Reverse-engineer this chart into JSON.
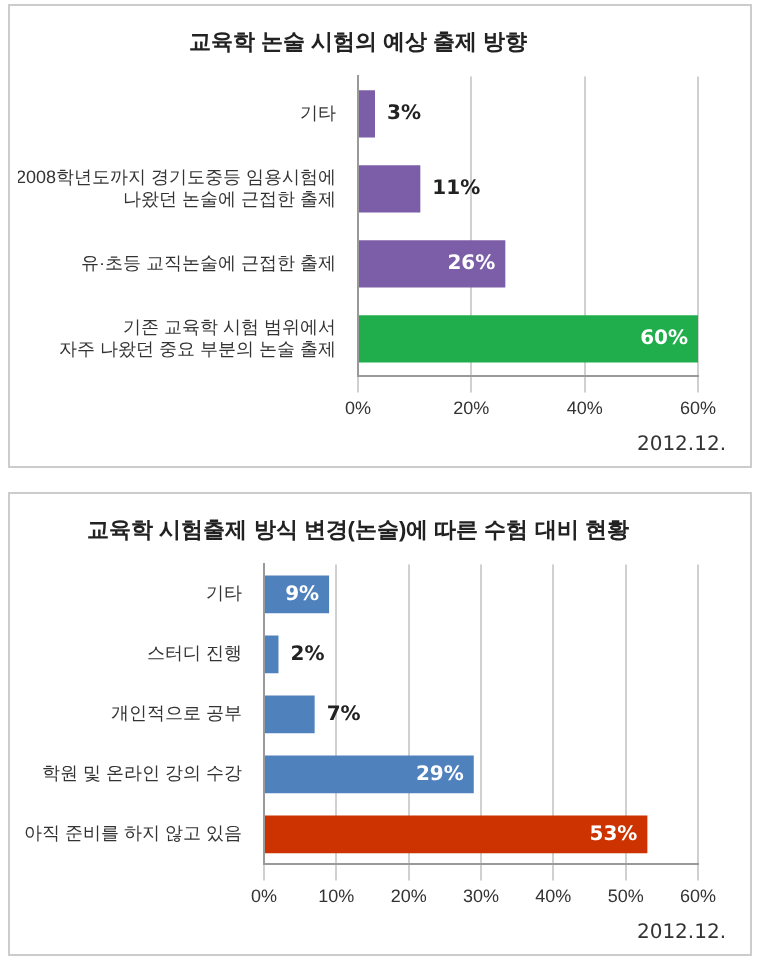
{
  "chart_data": [
    {
      "type": "bar",
      "orientation": "horizontal",
      "title": "교육학 논술 시험의 예상 출제 방향",
      "categories": [
        "기타",
        "2008학년도까지 경기도중등 임용시험에\n나왔던 논술에 근접한 출제",
        "유·초등 교직논술에 근접한 출제",
        "기존 교육학 시험 범위에서\n자주 나왔던 중요 부분의 논술 출제"
      ],
      "values": [
        3,
        11,
        26,
        60
      ],
      "colors": [
        "#7b5ea7",
        "#7b5ea7",
        "#7b5ea7",
        "#1fae4b"
      ],
      "value_labels": [
        "3%",
        "11%",
        "26%",
        "60%"
      ],
      "xlim": [
        0,
        60
      ],
      "xticks": [
        {
          "value": 0,
          "label": "0%"
        },
        {
          "value": 20,
          "label": "20%"
        },
        {
          "value": 40,
          "label": "40%"
        },
        {
          "value": 60,
          "label": "60%"
        }
      ],
      "grid": "x",
      "legend": false,
      "annotations": [
        "2012.12."
      ]
    },
    {
      "type": "bar",
      "orientation": "horizontal",
      "title": "교육학 시험출제 방식 변경(논술)에 따른 수험 대비 현황",
      "categories": [
        "기타",
        "스터디 진행",
        "개인적으로 공부",
        "학원 및 온라인 강의 수강",
        "아직 준비를 하지 않고 있음"
      ],
      "values": [
        9,
        2,
        7,
        29,
        53
      ],
      "colors": [
        "#4f81bd",
        "#4f81bd",
        "#4f81bd",
        "#4f81bd",
        "#cc3300"
      ],
      "value_labels": [
        "9%",
        "2%",
        "7%",
        "29%",
        "53%"
      ],
      "xlim": [
        0,
        60
      ],
      "xticks": [
        {
          "value": 0,
          "label": "0%"
        },
        {
          "value": 10,
          "label": "10%"
        },
        {
          "value": 20,
          "label": "20%"
        },
        {
          "value": 30,
          "label": "30%"
        },
        {
          "value": 40,
          "label": "40%"
        },
        {
          "value": 50,
          "label": "50%"
        },
        {
          "value": 60,
          "label": "60%"
        }
      ],
      "grid": "x",
      "legend": false,
      "annotations": [
        "2012.12."
      ]
    }
  ]
}
